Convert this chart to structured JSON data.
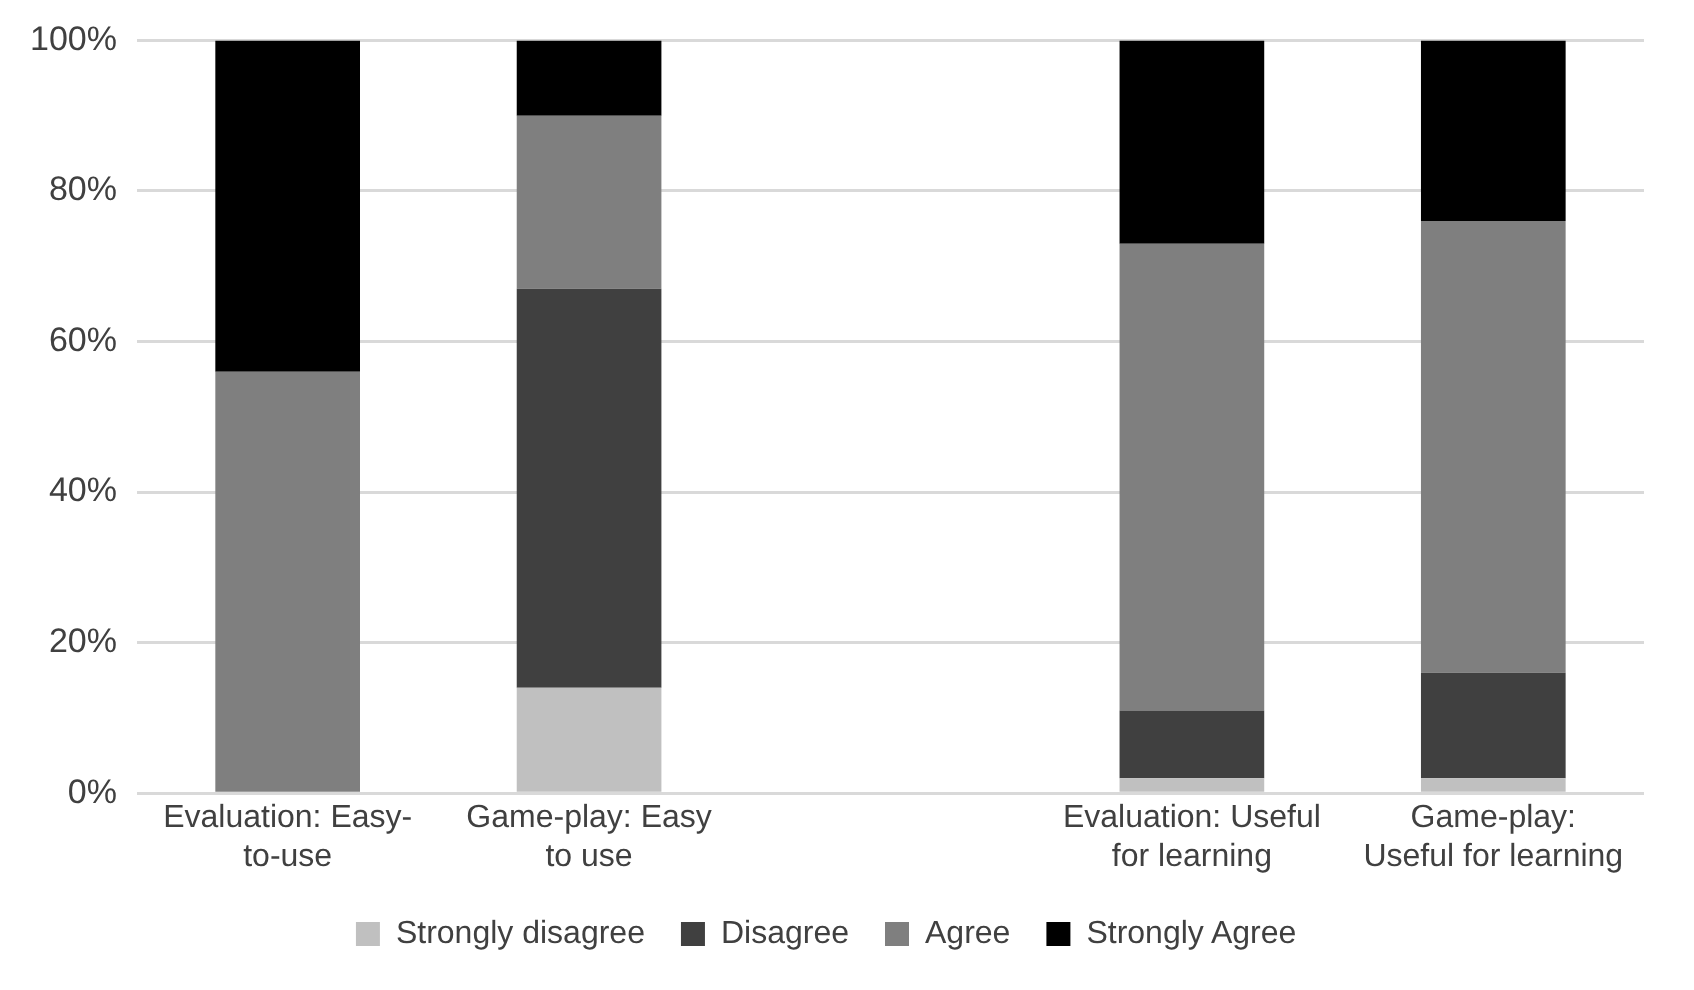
{
  "chart_data": {
    "type": "bar",
    "stacked": true,
    "categories": [
      "Evaluation: Easy-to-use",
      "Game-play: Easy to use",
      null,
      "Evaluation: Useful for learning",
      "Game-play: Useful for learning"
    ],
    "series": [
      {
        "name": "Strongly disagree",
        "color": "#c0c0c0",
        "values": [
          0,
          14,
          null,
          2,
          2
        ]
      },
      {
        "name": "Disagree",
        "color": "#404040",
        "values": [
          0,
          53,
          null,
          9,
          14
        ]
      },
      {
        "name": "Agree",
        "color": "#7f7f7f",
        "values": [
          56,
          23,
          null,
          62,
          60
        ]
      },
      {
        "name": "Strongly Agree",
        "color": "#000000",
        "values": [
          44,
          10,
          null,
          27,
          24
        ]
      }
    ],
    "ylim": [
      0,
      100
    ],
    "yticks": [
      {
        "value": 0,
        "label": "0%"
      },
      {
        "value": 20,
        "label": "20%"
      },
      {
        "value": 40,
        "label": "40%"
      },
      {
        "value": 60,
        "label": "60%"
      },
      {
        "value": 80,
        "label": "80%"
      },
      {
        "value": 100,
        "label": "100%"
      }
    ],
    "grid": "y",
    "legend": "bottom"
  }
}
